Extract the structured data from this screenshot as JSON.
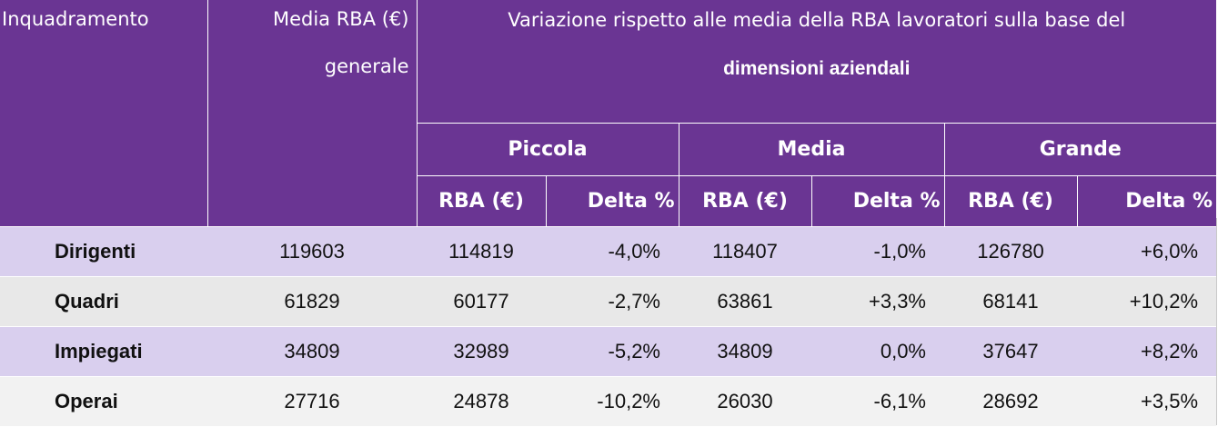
{
  "header": {
    "inquadramento": "Inquadramento",
    "media_line1": "Media RBA (€)",
    "media_line2": "generale",
    "variazione_line1": "Variazione rispetto alle media della RBA lavoratori sulla base del",
    "variazione_line2": "dimensioni aziendali",
    "sizes": [
      "Piccola",
      "Media",
      "Grande"
    ],
    "sub_rba": "RBA (€)",
    "sub_delta": "Delta %"
  },
  "rows": [
    {
      "cat": "Dirigenti",
      "media": "119603",
      "piccola_rba": "114819",
      "piccola_delta": "-4,0%",
      "media_rba": "118407",
      "media_delta": "-1,0%",
      "grande_rba": "126780",
      "grande_delta": "+6,0%"
    },
    {
      "cat": "Quadri",
      "media": "61829",
      "piccola_rba": "60177",
      "piccola_delta": "-2,7%",
      "media_rba": "63861",
      "media_delta": "+3,3%",
      "grande_rba": "68141",
      "grande_delta": "+10,2%"
    },
    {
      "cat": "Impiegati",
      "media": "34809",
      "piccola_rba": "32989",
      "piccola_delta": "-5,2%",
      "media_rba": "34809",
      "media_delta": "0,0%",
      "grande_rba": "37647",
      "grande_delta": "+8,2%"
    },
    {
      "cat": "Operai",
      "media": "27716",
      "piccola_rba": "24878",
      "piccola_delta": "-10,2%",
      "media_rba": "26030",
      "media_delta": "-6,1%",
      "grande_rba": "28692",
      "grande_delta": "+3,5%"
    }
  ],
  "colors": {
    "header_bg": "#6a3593",
    "row_lavender": "#d9cfee",
    "row_gray": "#e8e8e8"
  }
}
